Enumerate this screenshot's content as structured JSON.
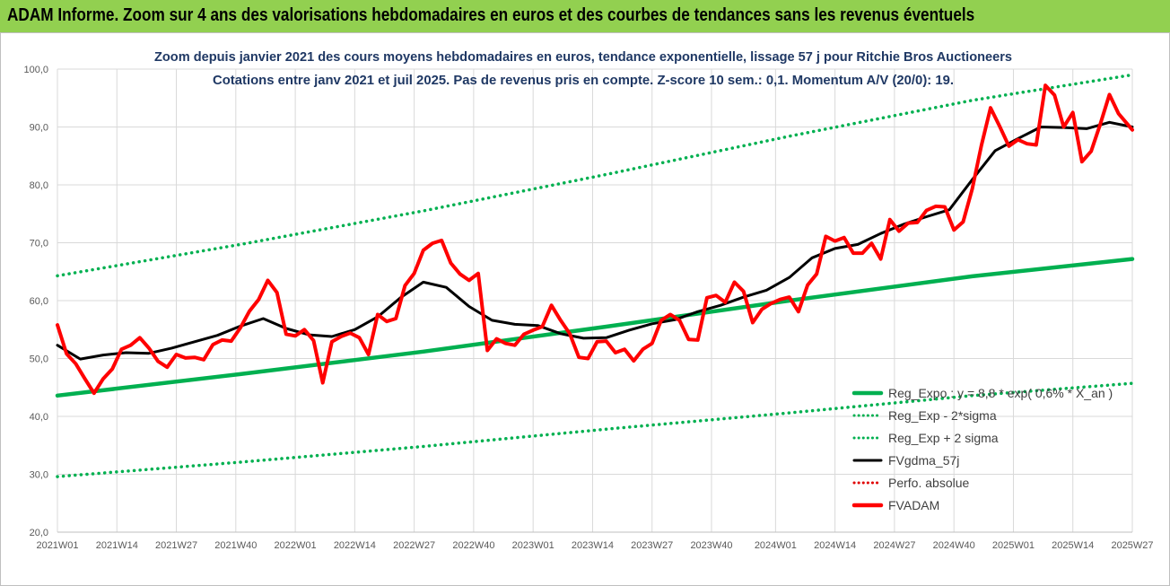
{
  "banner": {
    "text": "ADAM Informe. Zoom sur 4 ans des valorisations hebdomadaires en euros et des courbes de tendances sans les revenus éventuels",
    "bg_color": "#92d050"
  },
  "chart_data": {
    "type": "line",
    "title": "Zoom depuis janvier 2021 des cours moyens hebdomadaires en euros, tendance exponentielle, lissage 57 j pour Ritchie Bros Auctioneers",
    "subtitle": "Cotations entre janv 2021 et juil 2025. Pas de revenus pris en compte. Z-score 10 sem.: 0,1. Momentum A/V (20/0): 19.",
    "title_color": "#1f3864",
    "xlabel": "",
    "ylabel": "",
    "ylim": [
      20,
      100
    ],
    "yticks": [
      "20,0",
      "30,0",
      "40,0",
      "50,0",
      "60,0",
      "70,0",
      "80,0",
      "90,0",
      "100,0"
    ],
    "xlim": [
      0,
      235
    ],
    "xticks": [
      {
        "label": "2021W01",
        "x": 0
      },
      {
        "label": "2021W14",
        "x": 13
      },
      {
        "label": "2021W27",
        "x": 26
      },
      {
        "label": "2021W40",
        "x": 39
      },
      {
        "label": "2022W01",
        "x": 52
      },
      {
        "label": "2022W14",
        "x": 65
      },
      {
        "label": "2022W27",
        "x": 78
      },
      {
        "label": "2022W40",
        "x": 91
      },
      {
        "label": "2023W01",
        "x": 104
      },
      {
        "label": "2023W14",
        "x": 117
      },
      {
        "label": "2023W27",
        "x": 130
      },
      {
        "label": "2023W40",
        "x": 143
      },
      {
        "label": "2024W01",
        "x": 157
      },
      {
        "label": "2024W14",
        "x": 170
      },
      {
        "label": "2024W27",
        "x": 183
      },
      {
        "label": "2024W40",
        "x": 196
      },
      {
        "label": "2025W01",
        "x": 209
      },
      {
        "label": "2025W14",
        "x": 222
      },
      {
        "label": "2025W27",
        "x": 235
      }
    ],
    "grid": true,
    "legend_position": "bottom-right",
    "series": [
      {
        "name": "Reg_Expo : y = 8,8 * exp( 0,6% * X_an )",
        "style": "solid",
        "color": "#00b050",
        "x": [
          0,
          40,
          80,
          120,
          160,
          200,
          235
        ],
        "y": [
          43.6,
          47.3,
          51.2,
          55.5,
          60.0,
          64.2,
          67.2
        ]
      },
      {
        "name": "Reg_Exp - 2*sigma",
        "style": "dotted",
        "color": "#00b050",
        "x": [
          0,
          40,
          80,
          120,
          160,
          200,
          235
        ],
        "y": [
          29.6,
          32.1,
          34.8,
          37.8,
          40.6,
          43.6,
          45.7
        ]
      },
      {
        "name": "Reg_Exp + 2 sigma",
        "style": "dotted",
        "color": "#00b050",
        "x": [
          0,
          40,
          80,
          120,
          160,
          200,
          235
        ],
        "y": [
          64.3,
          69.7,
          75.5,
          81.8,
          88.4,
          94.6,
          99.0
        ]
      },
      {
        "name": "FVgdma_57j",
        "style": "solid",
        "color": "#000000",
        "x": [
          0,
          5,
          10,
          15,
          20,
          25,
          30,
          35,
          40,
          45,
          50,
          55,
          60,
          65,
          70,
          75,
          80,
          85,
          90,
          95,
          100,
          105,
          110,
          115,
          120,
          125,
          130,
          135,
          140,
          145,
          150,
          155,
          160,
          165,
          170,
          175,
          180,
          185,
          190,
          195,
          200,
          205,
          210,
          215,
          220,
          225,
          230,
          235
        ],
        "y": [
          52.3,
          49.9,
          50.6,
          51.0,
          50.9,
          51.8,
          52.9,
          54.0,
          55.6,
          56.9,
          55.2,
          54.1,
          53.8,
          55.0,
          57.2,
          60.5,
          63.2,
          62.3,
          59.0,
          56.6,
          55.9,
          55.7,
          54.3,
          53.5,
          53.6,
          54.9,
          56.0,
          56.7,
          58.1,
          59.2,
          60.6,
          61.8,
          64.0,
          67.4,
          69.0,
          69.7,
          71.6,
          73.2,
          74.5,
          75.7,
          80.9,
          85.9,
          88.0,
          90.0,
          89.9,
          89.7,
          90.8,
          90.0
        ]
      },
      {
        "name": "Perfo. absolue",
        "style": "dotted",
        "color": "#e00000",
        "x": [],
        "y": []
      },
      {
        "name": "FVADAM",
        "style": "solid",
        "color": "#ff0000",
        "x": [
          0,
          2,
          4,
          6,
          8,
          10,
          12,
          14,
          16,
          18,
          20,
          22,
          24,
          26,
          28,
          30,
          32,
          34,
          36,
          38,
          40,
          42,
          44,
          46,
          48,
          50,
          52,
          54,
          56,
          58,
          60,
          62,
          64,
          66,
          68,
          70,
          72,
          74,
          76,
          78,
          80,
          82,
          84,
          86,
          88,
          90,
          92,
          94,
          96,
          98,
          100,
          102,
          104,
          106,
          108,
          110,
          112,
          114,
          116,
          118,
          120,
          122,
          124,
          126,
          128,
          130,
          132,
          134,
          136,
          138,
          140,
          142,
          144,
          146,
          148,
          150,
          152,
          154,
          156,
          158,
          160,
          162,
          164,
          166,
          168,
          170,
          172,
          174,
          176,
          178,
          180,
          182,
          184,
          186,
          188,
          190,
          192,
          194,
          196,
          198,
          200,
          202,
          204,
          206,
          208,
          210,
          212,
          214,
          216,
          218,
          220,
          222,
          224,
          226,
          228,
          230,
          232,
          235
        ],
        "y": [
          55.8,
          50.8,
          49.1,
          46.5,
          44.0,
          46.5,
          48.2,
          51.6,
          52.3,
          53.6,
          51.8,
          49.5,
          48.5,
          50.7,
          50.1,
          50.2,
          49.8,
          52.4,
          53.2,
          53.0,
          55.3,
          58.2,
          60.2,
          63.5,
          61.4,
          54.2,
          53.9,
          55.0,
          53.1,
          45.8,
          52.9,
          53.8,
          54.4,
          53.6,
          50.7,
          57.6,
          56.4,
          56.9,
          62.6,
          64.7,
          68.7,
          69.9,
          70.4,
          66.5,
          64.6,
          63.5,
          64.7,
          51.4,
          53.4,
          52.6,
          52.3,
          54.2,
          54.9,
          55.5,
          59.2,
          56.6,
          54.3,
          50.2,
          50.0,
          52.9,
          53.0,
          51.0,
          51.6,
          49.6,
          51.6,
          52.6,
          56.6,
          57.6,
          56.6,
          53.3,
          53.2,
          60.5,
          60.9,
          59.7,
          63.2,
          61.6,
          56.2,
          58.5,
          59.5,
          60.2,
          60.6,
          58.1,
          62.7,
          64.6,
          71.1,
          70.3,
          70.9,
          68.2,
          68.2,
          69.9,
          67.2,
          74.0,
          72.0,
          73.4,
          73.5,
          75.6,
          76.3,
          76.2,
          72.2,
          73.6,
          79.3,
          86.8,
          93.3,
          90.1,
          86.7,
          87.8,
          87.1,
          86.9,
          97.2,
          95.5,
          90.0,
          92.5,
          84.0,
          85.8,
          90.5,
          95.6,
          92.3,
          89.5
        ]
      }
    ]
  }
}
